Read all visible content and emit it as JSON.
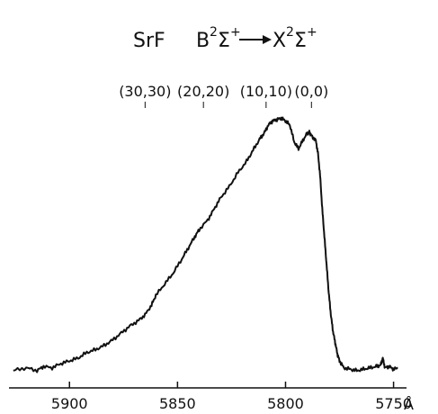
{
  "chart_data": {
    "type": "line",
    "title": {
      "molecule": "SrF",
      "upper_state": "B",
      "upper_sup": "2",
      "upper_sigma": "Σ",
      "upper_sigma_sup": "+",
      "lower_state": "X",
      "lower_sup": "2",
      "lower_sigma": "Σ",
      "lower_sigma_sup": "+"
    },
    "xunit": "Å",
    "xlim": [
      5928,
      5744
    ],
    "x_reversed": true,
    "ylim": [
      0,
      1
    ],
    "grid": false,
    "xticks": [
      {
        "value": 5900,
        "label": "5900"
      },
      {
        "value": 5850,
        "label": "5850"
      },
      {
        "value": 5800,
        "label": "5800"
      },
      {
        "value": 5750,
        "label": "5750"
      }
    ],
    "band_heads": [
      {
        "label": "(30,30)",
        "x": 5865
      },
      {
        "label": "(20,20)",
        "x": 5838
      },
      {
        "label": "(10,10)",
        "x": 5809
      },
      {
        "label": "(0,0)",
        "x": 5788
      }
    ],
    "series": [
      {
        "x": [
          5926,
          5920,
          5915,
          5912,
          5908,
          5904,
          5900,
          5896,
          5892,
          5888,
          5884,
          5880,
          5876,
          5872,
          5868,
          5865,
          5862,
          5860,
          5856,
          5852,
          5848,
          5845,
          5842,
          5840,
          5836,
          5833,
          5830,
          5826,
          5822,
          5818,
          5815,
          5812,
          5810,
          5808,
          5806,
          5804,
          5802,
          5800,
          5798,
          5796,
          5794,
          5792,
          5790,
          5789,
          5788,
          5786,
          5785,
          5784,
          5783,
          5782,
          5781,
          5780,
          5779,
          5778,
          5777,
          5776,
          5775,
          5773,
          5770,
          5767,
          5764,
          5761,
          5758,
          5756,
          5755,
          5754,
          5752,
          5750,
          5748
        ],
        "y": [
          0.02,
          0.03,
          0.02,
          0.035,
          0.03,
          0.045,
          0.055,
          0.065,
          0.085,
          0.095,
          0.11,
          0.13,
          0.155,
          0.18,
          0.2,
          0.22,
          0.255,
          0.29,
          0.33,
          0.37,
          0.42,
          0.46,
          0.5,
          0.525,
          0.56,
          0.6,
          0.64,
          0.68,
          0.73,
          0.77,
          0.81,
          0.85,
          0.87,
          0.9,
          0.915,
          0.92,
          0.925,
          0.915,
          0.9,
          0.84,
          0.815,
          0.845,
          0.87,
          0.875,
          0.862,
          0.845,
          0.8,
          0.72,
          0.6,
          0.5,
          0.4,
          0.3,
          0.22,
          0.16,
          0.12,
          0.08,
          0.055,
          0.03,
          0.025,
          0.02,
          0.025,
          0.03,
          0.035,
          0.04,
          0.065,
          0.03,
          0.035,
          0.025,
          0.03
        ]
      }
    ]
  }
}
